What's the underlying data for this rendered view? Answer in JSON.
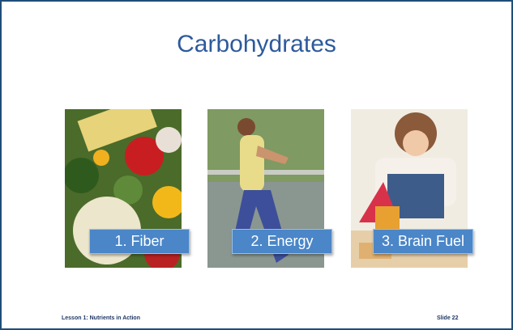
{
  "header": {
    "title": "Carbohydrates"
  },
  "panels": [
    {
      "label": "1. Fiber"
    },
    {
      "label": "2. Energy"
    },
    {
      "label": "3. Brain Fuel"
    }
  ],
  "footer": {
    "lesson": "Lesson 1: Nutrients in Action",
    "slide": "Slide 22"
  }
}
